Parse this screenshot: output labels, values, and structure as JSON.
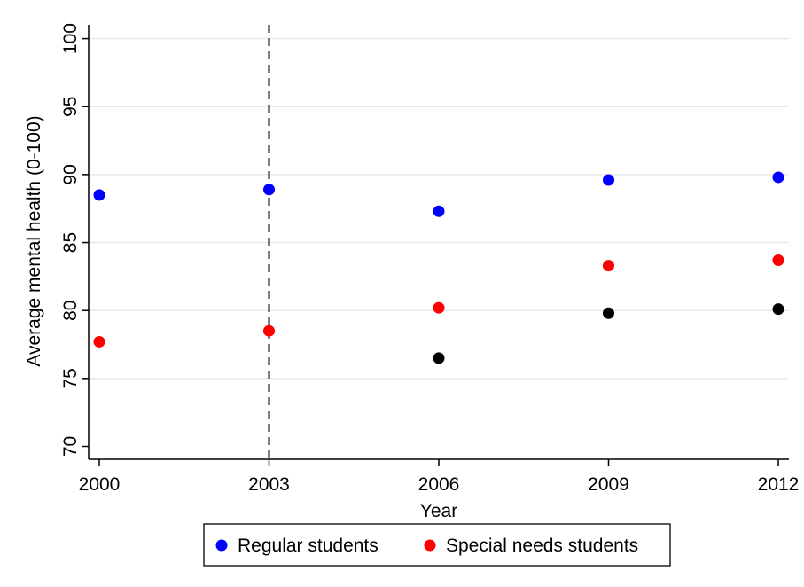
{
  "chart_data": {
    "type": "scatter",
    "title": "",
    "xlabel": "Year",
    "ylabel": "Average mental health (0-100)",
    "xlim": [
      2000,
      2012
    ],
    "ylim": [
      70,
      100
    ],
    "x_ticks": [
      2000,
      2003,
      2006,
      2009,
      2012
    ],
    "y_ticks": [
      70,
      75,
      80,
      85,
      90,
      95,
      100
    ],
    "grid": true,
    "reference_line": {
      "x": 2003,
      "style": "dashed",
      "color": "#000000"
    },
    "legend": {
      "position": "bottom",
      "entries": [
        "Regular students",
        "Special needs students"
      ]
    },
    "series": [
      {
        "name": "Regular students",
        "color": "#0000ff",
        "in_legend": true,
        "points": [
          [
            2000,
            88.5
          ],
          [
            2003,
            88.9
          ],
          [
            2006,
            87.3
          ],
          [
            2009,
            89.6
          ],
          [
            2012,
            89.8
          ]
        ]
      },
      {
        "name": "Special needs students",
        "color": "#ff0000",
        "in_legend": true,
        "points": [
          [
            2000,
            77.7
          ],
          [
            2003,
            78.5
          ],
          [
            2006,
            80.2
          ],
          [
            2009,
            83.3
          ],
          [
            2012,
            83.7
          ]
        ]
      },
      {
        "color": "#000000",
        "in_legend": false,
        "points": [
          [
            2006,
            76.5
          ],
          [
            2009,
            79.8
          ],
          [
            2012,
            80.1
          ]
        ]
      }
    ]
  }
}
